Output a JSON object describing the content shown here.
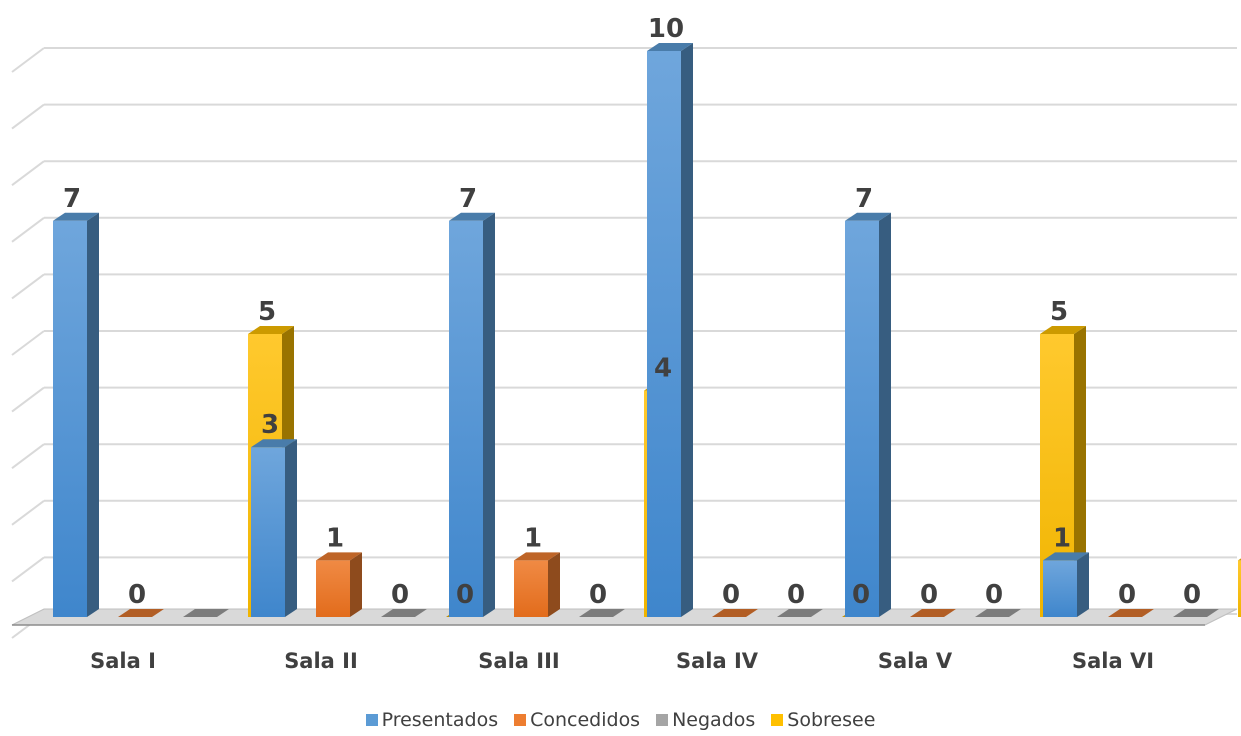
{
  "chart_data": {
    "type": "bar",
    "categories": [
      "Sala I",
      "Sala II",
      "Sala III",
      "Sala IV",
      "Sala V",
      "Sala VI"
    ],
    "series": [
      {
        "name": "Presentados",
        "color": "#5B9BD5",
        "values": [
          7,
          3,
          7,
          10,
          7,
          1
        ]
      },
      {
        "name": "Concedidos",
        "color": "#ED7D31",
        "values": [
          0,
          1,
          1,
          0,
          0,
          0
        ]
      },
      {
        "name": "Negados",
        "color": "#A5A5A5",
        "values": [
          0,
          0,
          0,
          0,
          0,
          0
        ]
      },
      {
        "name": "Sobresee",
        "color": "#FFC000",
        "values": [
          5,
          0,
          4,
          0,
          5,
          1
        ]
      }
    ],
    "data_labels": [
      [
        "7",
        "0",
        "",
        "5"
      ],
      [
        "3",
        "1",
        "0",
        "0"
      ],
      [
        "7",
        "1",
        "0",
        "4"
      ],
      [
        "10",
        "0",
        "0",
        "0"
      ],
      [
        "7",
        "0",
        "0",
        "5"
      ],
      [
        "1",
        "0",
        "0",
        "1"
      ]
    ],
    "ylim": [
      0,
      10
    ],
    "grid": true,
    "style": "3d-column",
    "legend_position": "bottom"
  }
}
